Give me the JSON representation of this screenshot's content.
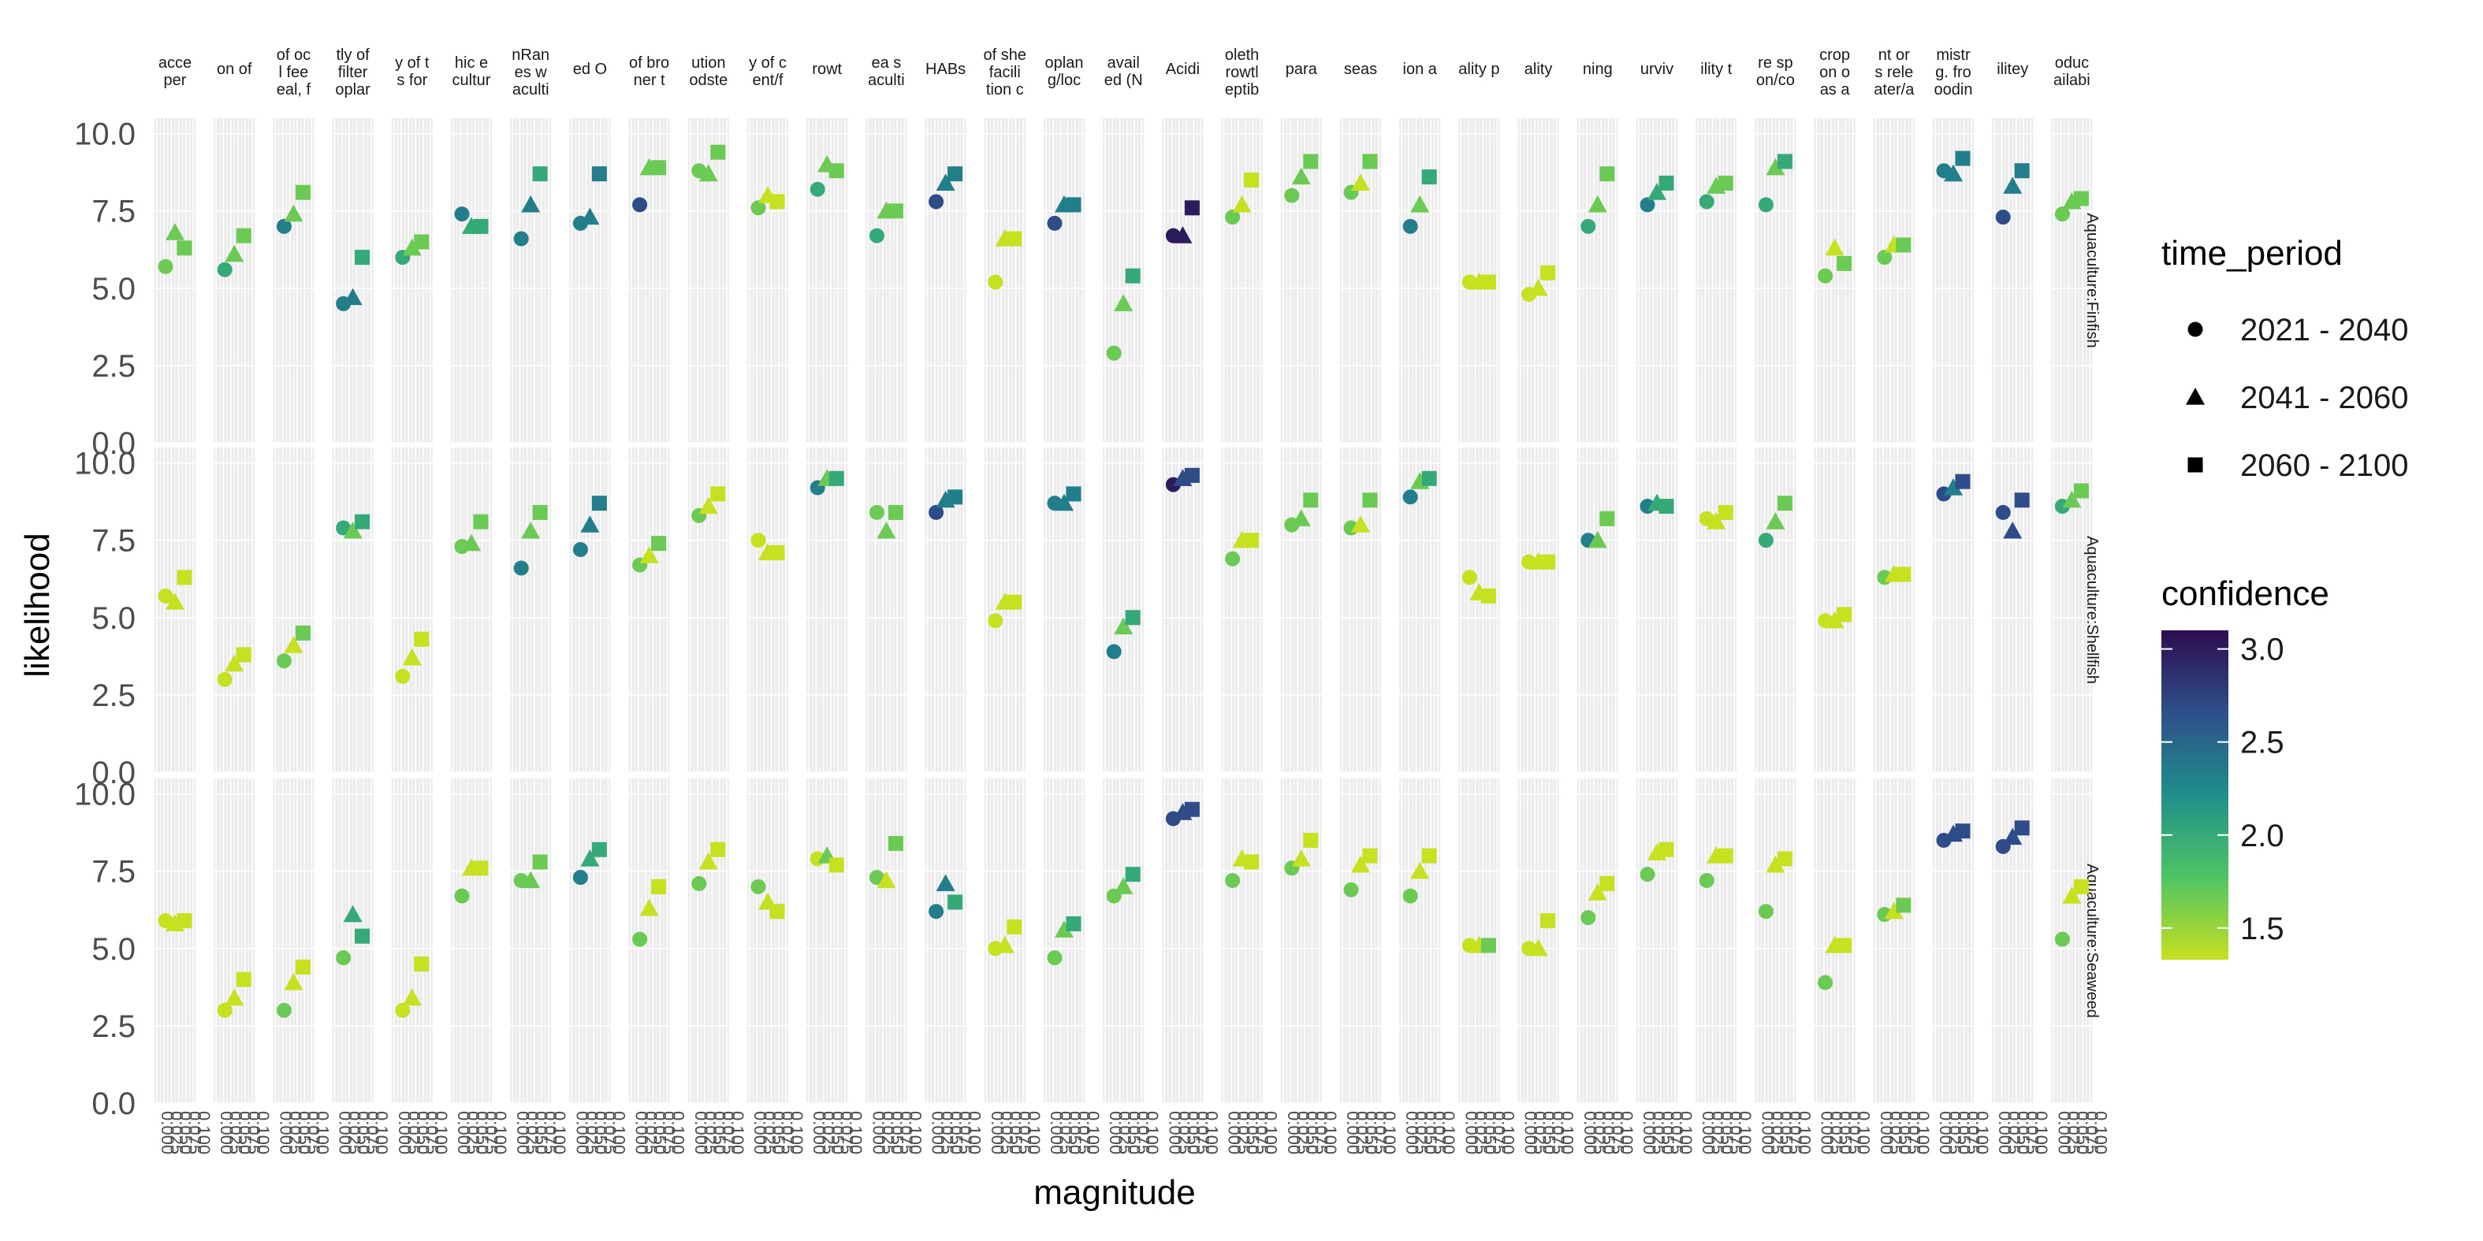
{
  "chart_data": {
    "type": "scatter",
    "xlabel": "magnitude",
    "ylabel": "likelihood",
    "ylim": [
      0,
      10.5
    ],
    "yticks": [
      0.0,
      2.5,
      5.0,
      7.5,
      10.0
    ],
    "ytick_labels": [
      "0.0",
      "2.5",
      "5.0",
      "7.5",
      "10.0"
    ],
    "x_tick_labels": [
      "0.000",
      "0.025",
      "0.050",
      "0.075",
      "0.100"
    ],
    "grid": true,
    "facet_columns": [
      "acce\nper",
      "on of",
      "of oc\nl fee\neal, f",
      "tly of\nfilter\noplar",
      "y of t\ns for",
      "hic e\ncultur",
      "nRan\nes w\naculti",
      "ed O",
      "of bro\nner t",
      "ution\nodste",
      "y of c\nent/f",
      "rowt",
      "ea s\naculti",
      "HABs",
      "of she\nfacili\ntion c",
      "oplan\ng/loc",
      "avail\ned (N",
      "Acidi",
      "oleth\nrowtl\neptib",
      "para",
      "seas",
      "ion a",
      "ality p",
      "ality",
      "ning",
      "urviv",
      "ility t",
      "re sp\non/co",
      "crop\non o\nas a",
      "nt or\ns rele\nater/a",
      "mistr\ng. fro\noodin",
      "ilitey",
      "oduc\nailabi"
    ],
    "facet_rows": [
      "Aquaculture:Finfish",
      "Aquaculture:Shellfish",
      "Aquaculture:Seaweed"
    ],
    "legend": {
      "shape_title": "time_period",
      "shape_entries": [
        {
          "label": "2021 - 2040",
          "shape": "circle"
        },
        {
          "label": "2041 - 2060",
          "shape": "triangle"
        },
        {
          "label": "2060 - 2100",
          "shape": "square"
        }
      ],
      "color_title": "confidence",
      "color_ticks": [
        3.0,
        2.5,
        2.0,
        1.5
      ],
      "color_tick_labels": [
        "3.0",
        "2.5",
        "2.0",
        "1.5"
      ],
      "color_range": [
        1.33,
        3.1
      ],
      "placement": "right"
    },
    "series": [
      {
        "name": "Aquaculture:Finfish",
        "time_periods": [
          "2021 - 2040",
          "2041 - 2060",
          "2060 - 2100"
        ],
        "likelihood": [
          [
            5.7,
            6.8,
            6.3
          ],
          [
            5.6,
            6.1,
            6.7
          ],
          [
            7.0,
            7.4,
            8.1
          ],
          [
            4.5,
            4.7,
            6.0
          ],
          [
            6.0,
            6.3,
            6.5
          ],
          [
            7.4,
            7.0,
            7.0
          ],
          [
            6.6,
            7.7,
            8.7
          ],
          [
            7.1,
            7.3,
            8.7
          ],
          [
            7.7,
            8.9,
            8.9
          ],
          [
            8.8,
            8.7,
            9.4
          ],
          [
            7.6,
            8.0,
            7.8
          ],
          [
            8.2,
            9.0,
            8.8
          ],
          [
            6.7,
            7.5,
            7.5
          ],
          [
            7.8,
            8.4,
            8.7
          ],
          [
            5.2,
            6.6,
            6.6
          ],
          [
            7.1,
            7.7,
            7.7
          ],
          [
            2.9,
            4.5,
            5.4
          ],
          [
            6.7,
            6.7,
            7.6
          ],
          [
            7.3,
            7.7,
            8.5
          ],
          [
            8.0,
            8.6,
            9.1
          ],
          [
            8.1,
            8.4,
            9.1
          ],
          [
            7.0,
            7.7,
            8.6
          ],
          [
            5.2,
            5.2,
            5.2
          ],
          [
            4.8,
            5.0,
            5.5
          ],
          [
            7.0,
            7.7,
            8.7
          ],
          [
            7.7,
            8.1,
            8.4
          ],
          [
            7.8,
            8.3,
            8.4
          ],
          [
            7.7,
            8.9,
            9.1
          ],
          [
            5.4,
            6.3,
            5.8
          ],
          [
            6.0,
            6.4,
            6.4
          ],
          [
            8.8,
            8.7,
            9.2
          ],
          [
            7.3,
            8.3,
            8.8
          ],
          [
            7.4,
            7.8,
            7.9
          ]
        ],
        "confidence": [
          [
            1.67,
            1.67,
            1.67
          ],
          [
            2.0,
            1.67,
            1.67
          ],
          [
            2.33,
            1.67,
            1.67
          ],
          [
            2.33,
            2.33,
            2.0
          ],
          [
            2.0,
            1.67,
            1.67
          ],
          [
            2.33,
            2.0,
            2.0
          ],
          [
            2.33,
            2.33,
            2.0
          ],
          [
            2.33,
            2.33,
            2.33
          ],
          [
            2.67,
            1.67,
            1.67
          ],
          [
            1.67,
            1.67,
            1.67
          ],
          [
            1.67,
            1.33,
            1.33
          ],
          [
            2.0,
            1.67,
            1.67
          ],
          [
            2.0,
            1.67,
            1.67
          ],
          [
            2.67,
            2.33,
            2.33
          ],
          [
            1.33,
            1.33,
            1.33
          ],
          [
            2.67,
            2.33,
            2.33
          ],
          [
            1.67,
            1.67,
            2.0
          ],
          [
            3.0,
            3.0,
            3.0
          ],
          [
            1.67,
            1.33,
            1.33
          ],
          [
            1.67,
            1.67,
            1.67
          ],
          [
            1.67,
            1.33,
            1.67
          ],
          [
            2.33,
            1.67,
            2.0
          ],
          [
            1.33,
            1.33,
            1.33
          ],
          [
            1.33,
            1.33,
            1.33
          ],
          [
            2.0,
            1.67,
            1.67
          ],
          [
            2.33,
            2.0,
            2.0
          ],
          [
            2.0,
            1.67,
            1.67
          ],
          [
            2.0,
            1.67,
            2.0
          ],
          [
            1.67,
            1.33,
            1.67
          ],
          [
            1.67,
            1.33,
            1.67
          ],
          [
            2.33,
            2.33,
            2.33
          ],
          [
            2.67,
            2.33,
            2.33
          ],
          [
            1.67,
            1.67,
            1.67
          ]
        ]
      },
      {
        "name": "Aquaculture:Shellfish",
        "time_periods": [
          "2021 - 2040",
          "2041 - 2060",
          "2060 - 2100"
        ],
        "likelihood": [
          [
            5.7,
            5.5,
            6.3
          ],
          [
            3.0,
            3.5,
            3.8
          ],
          [
            3.6,
            4.1,
            4.5
          ],
          [
            7.9,
            7.8,
            8.1
          ],
          [
            3.1,
            3.7,
            4.3
          ],
          [
            7.3,
            7.4,
            8.1
          ],
          [
            6.6,
            7.8,
            8.4
          ],
          [
            7.2,
            8.0,
            8.7
          ],
          [
            6.7,
            7.0,
            7.4
          ],
          [
            8.3,
            8.6,
            9.0
          ],
          [
            7.5,
            7.1,
            7.1
          ],
          [
            9.2,
            9.5,
            9.5
          ],
          [
            8.4,
            7.8,
            8.4
          ],
          [
            8.4,
            8.8,
            8.9
          ],
          [
            4.9,
            5.5,
            5.5
          ],
          [
            8.7,
            8.7,
            9.0
          ],
          [
            3.9,
            4.7,
            5.0
          ],
          [
            9.3,
            9.5,
            9.6
          ],
          [
            6.9,
            7.5,
            7.5
          ],
          [
            8.0,
            8.2,
            8.8
          ],
          [
            7.9,
            8.0,
            8.8
          ],
          [
            8.9,
            9.4,
            9.5
          ],
          [
            6.3,
            5.8,
            5.7
          ],
          [
            6.8,
            6.8,
            6.8
          ],
          [
            7.5,
            7.5,
            8.2
          ],
          [
            8.6,
            8.7,
            8.6
          ],
          [
            8.2,
            8.1,
            8.4
          ],
          [
            7.5,
            8.1,
            8.7
          ],
          [
            4.9,
            4.9,
            5.1
          ],
          [
            6.3,
            6.4,
            6.4
          ],
          [
            9.0,
            9.2,
            9.4
          ],
          [
            8.4,
            7.8,
            8.8
          ],
          [
            8.6,
            8.8,
            9.1
          ]
        ],
        "confidence": [
          [
            1.33,
            1.33,
            1.33
          ],
          [
            1.33,
            1.33,
            1.33
          ],
          [
            1.67,
            1.33,
            1.67
          ],
          [
            2.0,
            1.67,
            2.0
          ],
          [
            1.33,
            1.33,
            1.33
          ],
          [
            1.67,
            1.67,
            1.67
          ],
          [
            2.33,
            1.67,
            1.67
          ],
          [
            2.33,
            2.33,
            2.33
          ],
          [
            1.67,
            1.33,
            1.67
          ],
          [
            1.67,
            1.33,
            1.33
          ],
          [
            1.33,
            1.33,
            1.33
          ],
          [
            2.33,
            1.67,
            2.0
          ],
          [
            1.67,
            1.67,
            1.67
          ],
          [
            2.67,
            2.33,
            2.33
          ],
          [
            1.33,
            1.33,
            1.33
          ],
          [
            2.33,
            2.33,
            2.33
          ],
          [
            2.33,
            1.67,
            2.0
          ],
          [
            3.0,
            2.67,
            2.67
          ],
          [
            1.67,
            1.33,
            1.33
          ],
          [
            1.67,
            1.67,
            1.67
          ],
          [
            1.67,
            1.33,
            1.67
          ],
          [
            2.33,
            1.67,
            2.0
          ],
          [
            1.33,
            1.33,
            1.33
          ],
          [
            1.33,
            1.33,
            1.33
          ],
          [
            2.33,
            1.67,
            1.67
          ],
          [
            2.33,
            2.0,
            2.0
          ],
          [
            1.33,
            1.33,
            1.33
          ],
          [
            2.0,
            1.67,
            1.67
          ],
          [
            1.33,
            1.33,
            1.33
          ],
          [
            1.67,
            1.33,
            1.33
          ],
          [
            2.67,
            2.33,
            2.67
          ],
          [
            2.67,
            2.67,
            2.67
          ],
          [
            2.0,
            1.67,
            1.67
          ]
        ]
      },
      {
        "name": "Aquaculture:Seaweed",
        "time_periods": [
          "2021 - 2040",
          "2041 - 2060",
          "2060 - 2100"
        ],
        "likelihood": [
          [
            5.9,
            5.8,
            5.9
          ],
          [
            3.0,
            3.4,
            4.0
          ],
          [
            3.0,
            3.9,
            4.4
          ],
          [
            4.7,
            6.1,
            5.4
          ],
          [
            3.0,
            3.4,
            4.5
          ],
          [
            6.7,
            7.6,
            7.6
          ],
          [
            7.2,
            7.2,
            7.8
          ],
          [
            7.3,
            7.9,
            8.2
          ],
          [
            5.3,
            6.3,
            7.0
          ],
          [
            7.1,
            7.8,
            8.2
          ],
          [
            7.0,
            6.5,
            6.2
          ],
          [
            7.9,
            8.0,
            7.7
          ],
          [
            7.3,
            7.2,
            8.4
          ],
          [
            6.2,
            7.1,
            6.5
          ],
          [
            5.0,
            5.1,
            5.7
          ],
          [
            4.7,
            5.6,
            5.8
          ],
          [
            6.7,
            7.0,
            7.4
          ],
          [
            9.2,
            9.4,
            9.5
          ],
          [
            7.2,
            7.9,
            7.8
          ],
          [
            7.6,
            7.9,
            8.5
          ],
          [
            6.9,
            7.7,
            8.0
          ],
          [
            6.7,
            7.5,
            8.0
          ],
          [
            5.1,
            5.1,
            5.1
          ],
          [
            5.0,
            5.0,
            5.9
          ],
          [
            6.0,
            6.8,
            7.1
          ],
          [
            7.4,
            8.1,
            8.2
          ],
          [
            7.2,
            8.0,
            8.0
          ],
          [
            6.2,
            7.7,
            7.9
          ],
          [
            3.9,
            5.1,
            5.1
          ],
          [
            6.1,
            6.2,
            6.4
          ],
          [
            8.5,
            8.7,
            8.8
          ],
          [
            8.3,
            8.6,
            8.9
          ],
          [
            5.3,
            6.7,
            7.0
          ]
        ],
        "confidence": [
          [
            1.33,
            1.33,
            1.33
          ],
          [
            1.33,
            1.33,
            1.33
          ],
          [
            1.67,
            1.33,
            1.33
          ],
          [
            1.67,
            2.0,
            2.0
          ],
          [
            1.33,
            1.33,
            1.33
          ],
          [
            1.67,
            1.33,
            1.33
          ],
          [
            1.67,
            1.67,
            1.67
          ],
          [
            2.33,
            2.0,
            2.0
          ],
          [
            1.67,
            1.33,
            1.33
          ],
          [
            1.67,
            1.33,
            1.33
          ],
          [
            1.67,
            1.33,
            1.33
          ],
          [
            1.33,
            1.67,
            1.33
          ],
          [
            1.67,
            1.33,
            1.67
          ],
          [
            2.33,
            2.33,
            2.0
          ],
          [
            1.33,
            1.33,
            1.33
          ],
          [
            1.67,
            1.67,
            2.0
          ],
          [
            1.67,
            1.67,
            2.0
          ],
          [
            2.67,
            2.67,
            2.67
          ],
          [
            1.67,
            1.33,
            1.33
          ],
          [
            1.67,
            1.33,
            1.33
          ],
          [
            1.67,
            1.33,
            1.33
          ],
          [
            1.67,
            1.33,
            1.33
          ],
          [
            1.33,
            1.33,
            1.67
          ],
          [
            1.33,
            1.33,
            1.33
          ],
          [
            1.67,
            1.33,
            1.33
          ],
          [
            1.67,
            1.33,
            1.33
          ],
          [
            1.67,
            1.33,
            1.33
          ],
          [
            1.67,
            1.33,
            1.33
          ],
          [
            1.67,
            1.33,
            1.33
          ],
          [
            1.67,
            1.33,
            1.67
          ],
          [
            2.67,
            2.67,
            2.67
          ],
          [
            2.67,
            2.67,
            2.67
          ],
          [
            1.67,
            1.33,
            1.33
          ]
        ]
      }
    ]
  }
}
